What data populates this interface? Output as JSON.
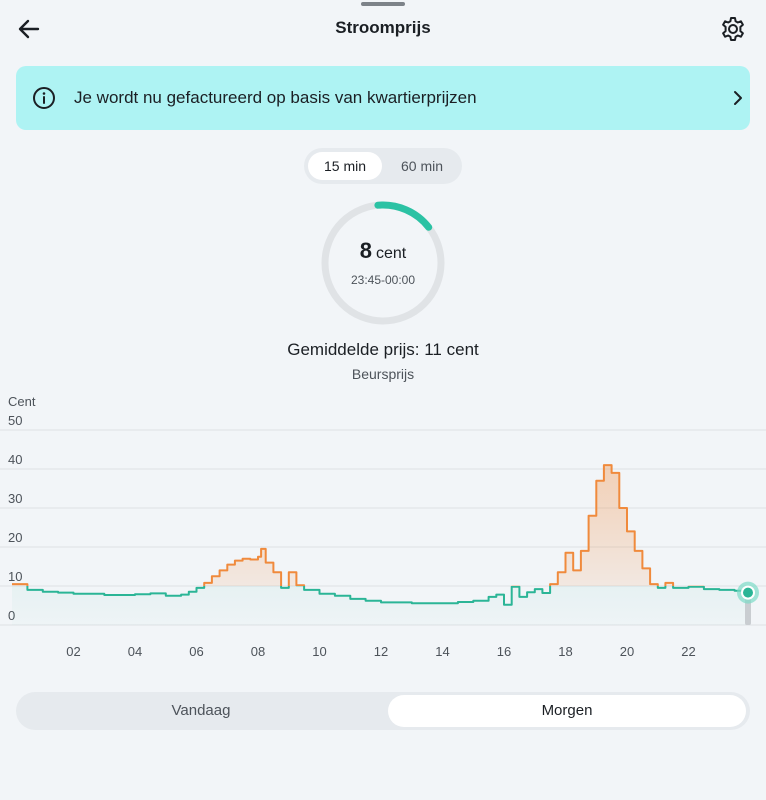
{
  "header": {
    "title": "Stroomprijs",
    "back_icon": "arrow-left-icon",
    "settings_icon": "gear-icon"
  },
  "banner": {
    "text": "Je wordt nu gefactureerd op basis van kwartierprijzen",
    "icon": "info-icon",
    "chevron": "chevron-right-icon"
  },
  "interval_toggle": {
    "options": [
      "15 min",
      "60 min"
    ],
    "selected": "15 min"
  },
  "gauge": {
    "value": "8",
    "unit": "cent",
    "time_range": "23:45-00:00",
    "accent": "#2bc2a4"
  },
  "average": {
    "label": "Gemiddelde prijs: 11 cent",
    "price_type": "Beursprijs"
  },
  "chart_data": {
    "type": "line",
    "ylabel": "Cent",
    "ylim": [
      0,
      50
    ],
    "yticks": [
      "0",
      "10",
      "20",
      "30",
      "40",
      "50"
    ],
    "xticks": [
      "02",
      "04",
      "06",
      "08",
      "10",
      "12",
      "14",
      "16",
      "18",
      "20",
      "22"
    ],
    "xlim": [
      0,
      24
    ],
    "threshold": 10,
    "grid": true,
    "colors": {
      "below": "#2bb596",
      "above": "#f08a3c"
    },
    "points": [
      [
        0,
        10.5
      ],
      [
        0.5,
        9
      ],
      [
        1,
        8.5
      ],
      [
        1.5,
        8.3
      ],
      [
        2,
        8
      ],
      [
        3,
        7.7
      ],
      [
        4,
        7.9
      ],
      [
        4.5,
        8.1
      ],
      [
        5,
        7.5
      ],
      [
        5.5,
        7.8
      ],
      [
        5.75,
        8.5
      ],
      [
        6,
        9.5
      ],
      [
        6.25,
        10.8
      ],
      [
        6.5,
        12.5
      ],
      [
        6.75,
        14
      ],
      [
        7,
        15.5
      ],
      [
        7.25,
        16.5
      ],
      [
        7.5,
        17
      ],
      [
        7.75,
        16.8
      ],
      [
        8,
        17.5
      ],
      [
        8.1,
        19.5
      ],
      [
        8.25,
        16
      ],
      [
        8.5,
        13.5
      ],
      [
        8.75,
        9.5
      ],
      [
        9,
        13.5
      ],
      [
        9.25,
        10.2
      ],
      [
        9.5,
        9
      ],
      [
        10,
        8
      ],
      [
        10.5,
        7.5
      ],
      [
        11,
        6.7
      ],
      [
        11.5,
        6.2
      ],
      [
        12,
        5.8
      ],
      [
        13,
        5.6
      ],
      [
        14,
        5.6
      ],
      [
        14.5,
        5.9
      ],
      [
        15,
        6.2
      ],
      [
        15.5,
        7.2
      ],
      [
        15.75,
        7.8
      ],
      [
        16,
        5.2
      ],
      [
        16.25,
        9.8
      ],
      [
        16.5,
        7.2
      ],
      [
        16.75,
        8.4
      ],
      [
        17,
        9.2
      ],
      [
        17.25,
        8.2
      ],
      [
        17.5,
        10.5
      ],
      [
        17.75,
        13.5
      ],
      [
        18,
        18.5
      ],
      [
        18.25,
        14
      ],
      [
        18.5,
        19
      ],
      [
        18.75,
        28
      ],
      [
        19,
        37
      ],
      [
        19.25,
        41
      ],
      [
        19.5,
        39
      ],
      [
        19.75,
        30
      ],
      [
        20,
        24
      ],
      [
        20.25,
        19
      ],
      [
        20.5,
        14.5
      ],
      [
        20.75,
        10.5
      ],
      [
        21,
        9.5
      ],
      [
        21.25,
        10.8
      ],
      [
        21.5,
        9.5
      ],
      [
        22,
        9.8
      ],
      [
        22.5,
        9.2
      ],
      [
        23,
        9
      ],
      [
        23.5,
        8.8
      ],
      [
        23.75,
        8.3
      ],
      [
        24,
        8.3
      ]
    ]
  },
  "day_toggle": {
    "options": [
      "Vandaag",
      "Morgen"
    ],
    "selected": "Morgen"
  }
}
